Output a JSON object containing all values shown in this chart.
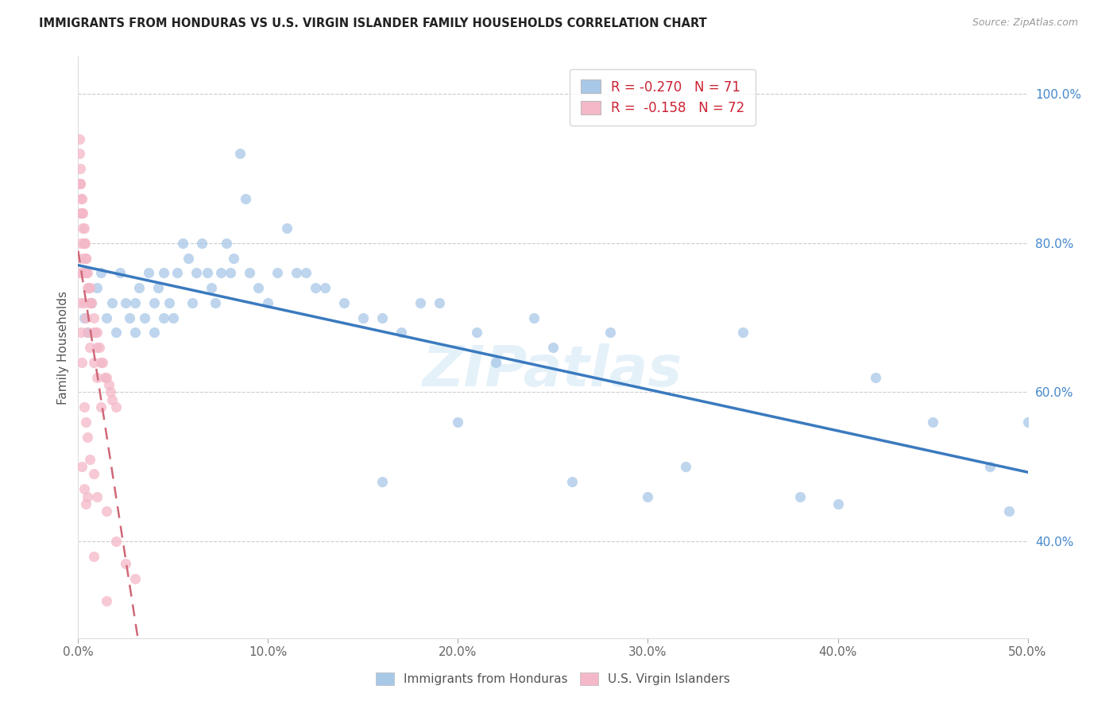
{
  "title": "IMMIGRANTS FROM HONDURAS VS U.S. VIRGIN ISLANDER FAMILY HOUSEHOLDS CORRELATION CHART",
  "source": "Source: ZipAtlas.com",
  "ylabel": "Family Households",
  "xlim": [
    0.0,
    0.5
  ],
  "ylim": [
    0.27,
    1.05
  ],
  "xtick_labels": [
    "0.0%",
    "10.0%",
    "20.0%",
    "30.0%",
    "40.0%",
    "50.0%"
  ],
  "xtick_vals": [
    0.0,
    0.1,
    0.2,
    0.3,
    0.4,
    0.5
  ],
  "ytick_labels_right": [
    "100.0%",
    "80.0%",
    "60.0%",
    "40.0%"
  ],
  "ytick_vals_right": [
    1.0,
    0.8,
    0.6,
    0.4
  ],
  "blue_scatter_color": "#a8c8e8",
  "pink_scatter_color": "#f4b8c8",
  "blue_line_color": "#3a7abf",
  "pink_line_color": "#d06878",
  "watermark": "ZIPatlas",
  "background_color": "#ffffff",
  "grid_color": "#cccccc",
  "blue_r": "-0.270",
  "blue_n": "71",
  "pink_r": "-0.158",
  "pink_n": "72",
  "blue_points_x": [
    0.003,
    0.005,
    0.007,
    0.01,
    0.012,
    0.015,
    0.018,
    0.02,
    0.022,
    0.025,
    0.027,
    0.03,
    0.03,
    0.032,
    0.035,
    0.037,
    0.04,
    0.04,
    0.042,
    0.045,
    0.045,
    0.048,
    0.05,
    0.052,
    0.055,
    0.058,
    0.06,
    0.062,
    0.065,
    0.068,
    0.07,
    0.072,
    0.075,
    0.078,
    0.08,
    0.082,
    0.085,
    0.088,
    0.09,
    0.095,
    0.1,
    0.105,
    0.11,
    0.115,
    0.12,
    0.125,
    0.13,
    0.14,
    0.15,
    0.16,
    0.17,
    0.18,
    0.19,
    0.2,
    0.21,
    0.22,
    0.24,
    0.25,
    0.26,
    0.28,
    0.3,
    0.32,
    0.35,
    0.38,
    0.4,
    0.42,
    0.45,
    0.48,
    0.49,
    0.5,
    0.16
  ],
  "blue_points_y": [
    0.7,
    0.68,
    0.72,
    0.74,
    0.76,
    0.7,
    0.72,
    0.68,
    0.76,
    0.72,
    0.7,
    0.68,
    0.72,
    0.74,
    0.7,
    0.76,
    0.72,
    0.68,
    0.74,
    0.7,
    0.76,
    0.72,
    0.7,
    0.76,
    0.8,
    0.78,
    0.72,
    0.76,
    0.8,
    0.76,
    0.74,
    0.72,
    0.76,
    0.8,
    0.76,
    0.78,
    0.92,
    0.86,
    0.76,
    0.74,
    0.72,
    0.76,
    0.82,
    0.76,
    0.76,
    0.74,
    0.74,
    0.72,
    0.7,
    0.7,
    0.68,
    0.72,
    0.72,
    0.56,
    0.68,
    0.64,
    0.7,
    0.66,
    0.48,
    0.68,
    0.46,
    0.5,
    0.68,
    0.46,
    0.45,
    0.62,
    0.56,
    0.5,
    0.44,
    0.56,
    0.48
  ],
  "pink_points_x": [
    0.0005,
    0.0008,
    0.001,
    0.001,
    0.0012,
    0.0015,
    0.0018,
    0.002,
    0.002,
    0.0022,
    0.0025,
    0.003,
    0.003,
    0.0032,
    0.0035,
    0.0038,
    0.004,
    0.004,
    0.0042,
    0.005,
    0.005,
    0.0055,
    0.006,
    0.006,
    0.0065,
    0.007,
    0.008,
    0.008,
    0.009,
    0.01,
    0.01,
    0.011,
    0.012,
    0.013,
    0.014,
    0.015,
    0.016,
    0.017,
    0.018,
    0.02,
    0.0008,
    0.001,
    0.0015,
    0.002,
    0.0025,
    0.003,
    0.004,
    0.005,
    0.006,
    0.008,
    0.01,
    0.012,
    0.0005,
    0.001,
    0.0015,
    0.002,
    0.003,
    0.004,
    0.005,
    0.006,
    0.008,
    0.01,
    0.015,
    0.02,
    0.025,
    0.03,
    0.002,
    0.003,
    0.004,
    0.005,
    0.008,
    0.015
  ],
  "pink_points_y": [
    0.94,
    0.92,
    0.9,
    0.88,
    0.88,
    0.86,
    0.84,
    0.86,
    0.84,
    0.84,
    0.82,
    0.82,
    0.8,
    0.8,
    0.8,
    0.78,
    0.78,
    0.76,
    0.76,
    0.76,
    0.74,
    0.74,
    0.74,
    0.72,
    0.72,
    0.72,
    0.7,
    0.68,
    0.68,
    0.68,
    0.66,
    0.66,
    0.64,
    0.64,
    0.62,
    0.62,
    0.61,
    0.6,
    0.59,
    0.58,
    0.88,
    0.84,
    0.8,
    0.78,
    0.76,
    0.72,
    0.7,
    0.68,
    0.66,
    0.64,
    0.62,
    0.58,
    0.76,
    0.72,
    0.68,
    0.64,
    0.58,
    0.56,
    0.54,
    0.51,
    0.49,
    0.46,
    0.44,
    0.4,
    0.37,
    0.35,
    0.5,
    0.47,
    0.45,
    0.46,
    0.38,
    0.32
  ]
}
